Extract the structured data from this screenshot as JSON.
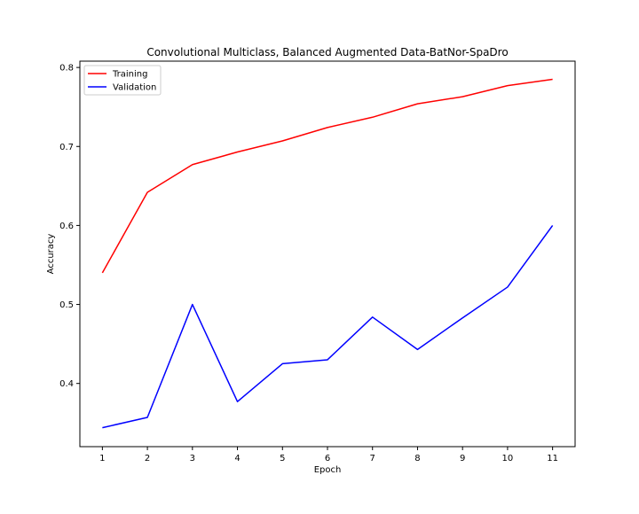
{
  "chart_data": {
    "type": "line",
    "title": "Convolutional Multiclass, Balanced Augmented Data-BatNor-SpaDro",
    "xlabel": "Epoch",
    "ylabel": "Accuracy",
    "x": [
      1,
      2,
      3,
      4,
      5,
      6,
      7,
      8,
      9,
      10,
      11
    ],
    "xticks": [
      "1",
      "2",
      "3",
      "4",
      "5",
      "6",
      "7",
      "8",
      "9",
      "10",
      "11"
    ],
    "yticks": [
      "0.4",
      "0.5",
      "0.6",
      "0.7",
      "0.8"
    ],
    "xlim": [
      0.5,
      11.5
    ],
    "ylim": [
      0.32,
      0.808
    ],
    "grid": false,
    "legend_position": "top-left",
    "series": [
      {
        "name": "Training",
        "color": "#ff0000",
        "values": [
          0.54,
          0.642,
          0.677,
          0.693,
          0.707,
          0.724,
          0.737,
          0.754,
          0.763,
          0.777,
          0.785
        ]
      },
      {
        "name": "Validation",
        "color": "#0000ff",
        "values": [
          0.344,
          0.357,
          0.5,
          0.377,
          0.425,
          0.43,
          0.484,
          0.443,
          0.483,
          0.522,
          0.6
        ]
      }
    ]
  }
}
